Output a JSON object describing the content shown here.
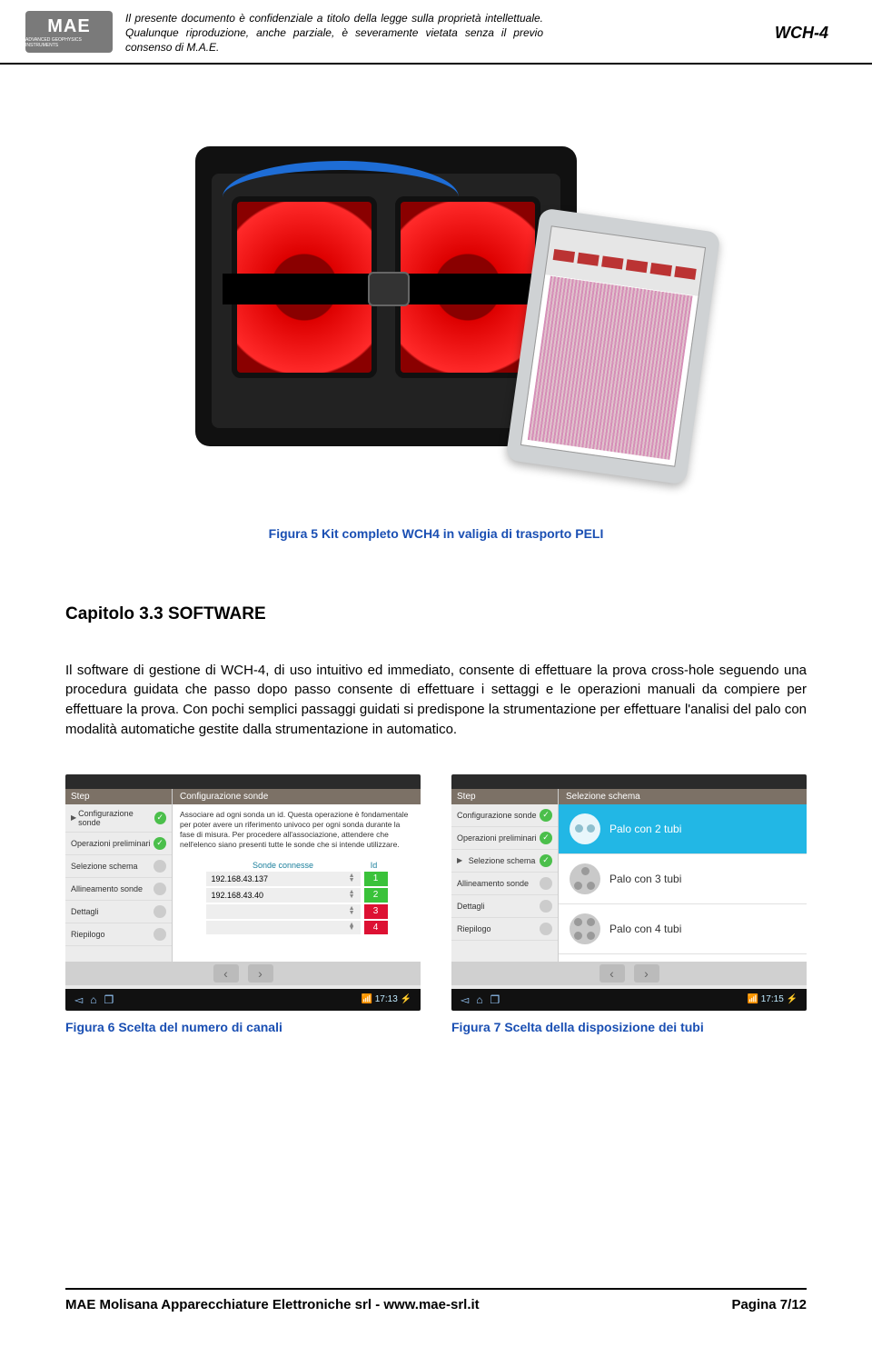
{
  "header": {
    "logo_text": "MAE",
    "logo_sub": "ADVANCED GEOPHYSICS INSTRUMENTS",
    "confidential": "Il presente documento è confidenziale a titolo della legge sulla proprietà intellettuale. Qualunque riproduzione, anche parziale, è severamente vietata senza il previo consenso di M.A.E.",
    "product_code": "WCH-4"
  },
  "figure5_caption": "Figura 5 Kit completo WCH4 in valigia di trasporto PELI",
  "chapter_title": "Capitolo  3.3 SOFTWARE",
  "body": "Il software di gestione di WCH-4, di uso intuitivo ed immediato, consente di effettuare  la prova cross-hole seguendo una procedura guidata che passo dopo passo consente di effettuare i settaggi e le operazioni manuali da compiere per effettuare la prova. Con pochi semplici passaggi guidati si predispone la strumentazione per effettuare l'analisi del palo con modalità automatiche gestite dalla strumentazione in automatico.",
  "screen1": {
    "side_head": "Step",
    "items": [
      {
        "label": "Configurazione sonde",
        "check": true,
        "active": true
      },
      {
        "label": "Operazioni preliminari",
        "check": true
      },
      {
        "label": "Selezione schema",
        "check": false
      },
      {
        "label": "Allineamento sonde",
        "check": false
      },
      {
        "label": "Dettagli",
        "check": false
      },
      {
        "label": "Riepilogo",
        "check": false
      }
    ],
    "main_head": "Configurazione sonde",
    "desc": "Associare ad ogni sonda un id. Questa operazione è fondamentale per poter avere un riferimento univoco per ogni sonda durante la fase di misura.\nPer procedere all'associazione, attendere che nell'elenco siano presenti tutte le sonde che si intende utilizzare.",
    "col1": "Sonde connesse",
    "col2": "Id",
    "rows": [
      {
        "ip": "192.168.43.137",
        "id": "1",
        "cls": "id1"
      },
      {
        "ip": "192.168.43.40",
        "id": "2",
        "cls": "id2"
      },
      {
        "ip": "",
        "id": "3",
        "cls": "id3"
      },
      {
        "ip": "",
        "id": "4",
        "cls": "id4"
      }
    ],
    "time": "17:13"
  },
  "screen2": {
    "side_head": "Step",
    "items": [
      {
        "label": "Configurazione sonde",
        "check": true
      },
      {
        "label": "Operazioni preliminari",
        "check": true
      },
      {
        "label": "Selezione schema",
        "check": true,
        "active": true
      },
      {
        "label": "Allineamento sonde",
        "check": false
      },
      {
        "label": "Dettagli",
        "check": false
      },
      {
        "label": "Riepilogo",
        "check": false
      }
    ],
    "main_head": "Selezione schema",
    "options": [
      {
        "label": "Palo con 2 tubi",
        "selected": true,
        "ico": "t2"
      },
      {
        "label": "Palo con 3 tubi",
        "selected": false,
        "ico": "t3"
      },
      {
        "label": "Palo con 4 tubi",
        "selected": false,
        "ico": "t4"
      }
    ],
    "time": "17:15"
  },
  "figure6_caption": "Figura 6 Scelta del numero di canali",
  "figure7_caption": "Figura 7 Scelta della disposizione dei  tubi",
  "footer": {
    "company": "MAE Molisana Apparecchiature Elettroniche srl - www.mae-srl.it",
    "page": "Pagina 7/12"
  },
  "colors": {
    "link_blue": "#1a4fb3",
    "sel_blue": "#22b7e5",
    "ok_green": "#4bbf4b",
    "err_red": "#dd1133"
  }
}
